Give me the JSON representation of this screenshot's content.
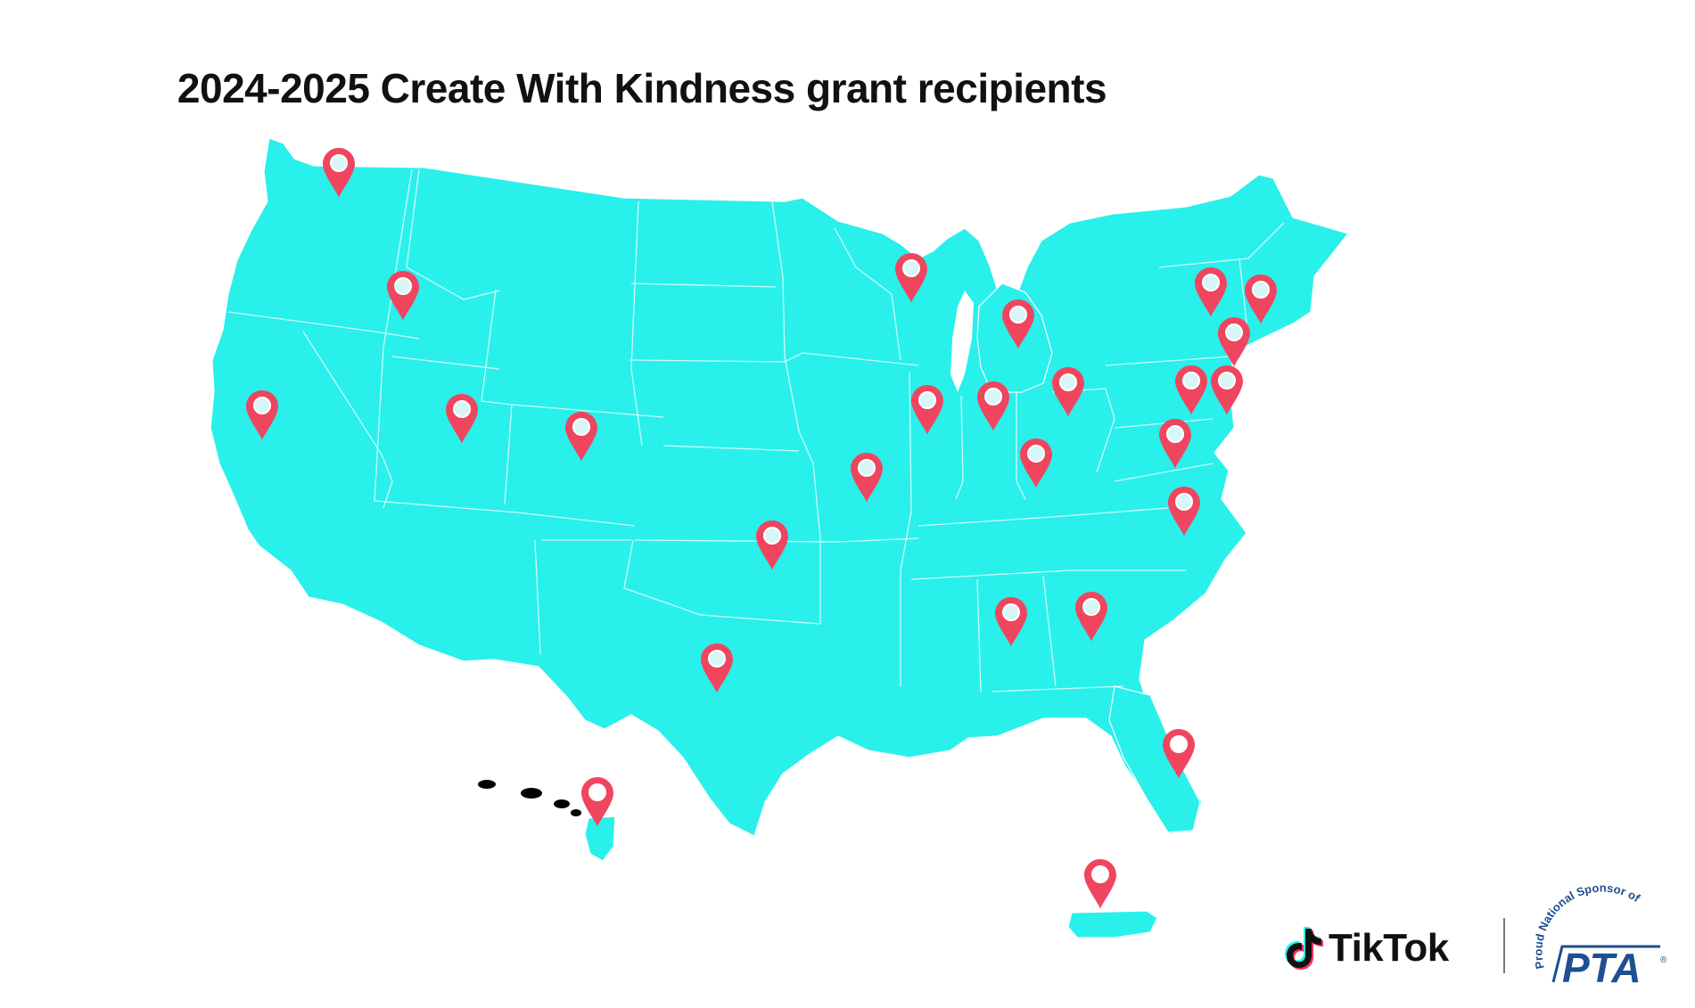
{
  "title": "2024-2025 Create With Kindness grant recipients",
  "colors": {
    "land": "#29f0eb",
    "pin": "#f0455f",
    "pta_blue": "#1d4f91"
  },
  "pins": [
    {
      "name": "Washington"
    },
    {
      "name": "Idaho"
    },
    {
      "name": "California"
    },
    {
      "name": "Utah"
    },
    {
      "name": "Colorado"
    },
    {
      "name": "Oklahoma"
    },
    {
      "name": "Texas"
    },
    {
      "name": "Missouri"
    },
    {
      "name": "Wisconsin"
    },
    {
      "name": "Illinois"
    },
    {
      "name": "Indiana"
    },
    {
      "name": "Michigan"
    },
    {
      "name": "Ohio"
    },
    {
      "name": "Kentucky"
    },
    {
      "name": "New York"
    },
    {
      "name": "Massachusetts"
    },
    {
      "name": "Connecticut"
    },
    {
      "name": "Pennsylvania"
    },
    {
      "name": "New Jersey"
    },
    {
      "name": "Virginia"
    },
    {
      "name": "North Carolina"
    },
    {
      "name": "Alabama"
    },
    {
      "name": "Georgia"
    },
    {
      "name": "Florida"
    },
    {
      "name": "Hawaii"
    },
    {
      "name": "Puerto Rico"
    }
  ],
  "footer": {
    "tiktok_label": "TikTok",
    "pta_sponsor_text": "Proud National Sponsor of",
    "pta_label": "PTA",
    "registered_mark": "®"
  }
}
